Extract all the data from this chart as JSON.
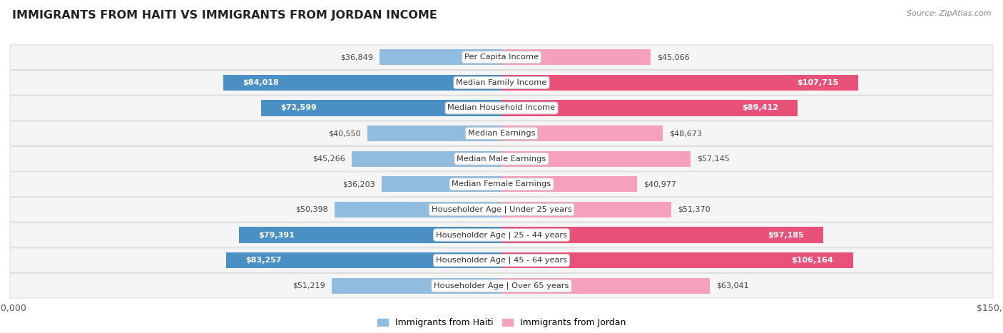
{
  "title": "IMMIGRANTS FROM HAITI VS IMMIGRANTS FROM JORDAN INCOME",
  "source": "Source: ZipAtlas.com",
  "categories": [
    "Per Capita Income",
    "Median Family Income",
    "Median Household Income",
    "Median Earnings",
    "Median Male Earnings",
    "Median Female Earnings",
    "Householder Age | Under 25 years",
    "Householder Age | 25 - 44 years",
    "Householder Age | 45 - 64 years",
    "Householder Age | Over 65 years"
  ],
  "haiti_values": [
    36849,
    84018,
    72599,
    40550,
    45266,
    36203,
    50398,
    79391,
    83257,
    51219
  ],
  "jordan_values": [
    45066,
    107715,
    89412,
    48673,
    57145,
    40977,
    51370,
    97185,
    106164,
    63041
  ],
  "haiti_labels": [
    "$36,849",
    "$84,018",
    "$72,599",
    "$40,550",
    "$45,266",
    "$36,203",
    "$50,398",
    "$79,391",
    "$83,257",
    "$51,219"
  ],
  "jordan_labels": [
    "$45,066",
    "$107,715",
    "$89,412",
    "$48,673",
    "$57,145",
    "$40,977",
    "$51,370",
    "$97,185",
    "$106,164",
    "$63,041"
  ],
  "haiti_color_light": "#90bce0",
  "haiti_color_dark": "#4a90c4",
  "jordan_color_light": "#f5a0bc",
  "jordan_color_dark": "#e8527a",
  "max_value": 150000,
  "bar_height": 0.62,
  "background_color": "#ffffff",
  "row_facecolor": "#f5f5f5",
  "row_edgecolor": "#dddddd",
  "haiti_dark_threshold": 70000,
  "jordan_dark_threshold": 80000,
  "haiti_inside_label_threshold": 70000,
  "jordan_inside_label_threshold": 80000
}
